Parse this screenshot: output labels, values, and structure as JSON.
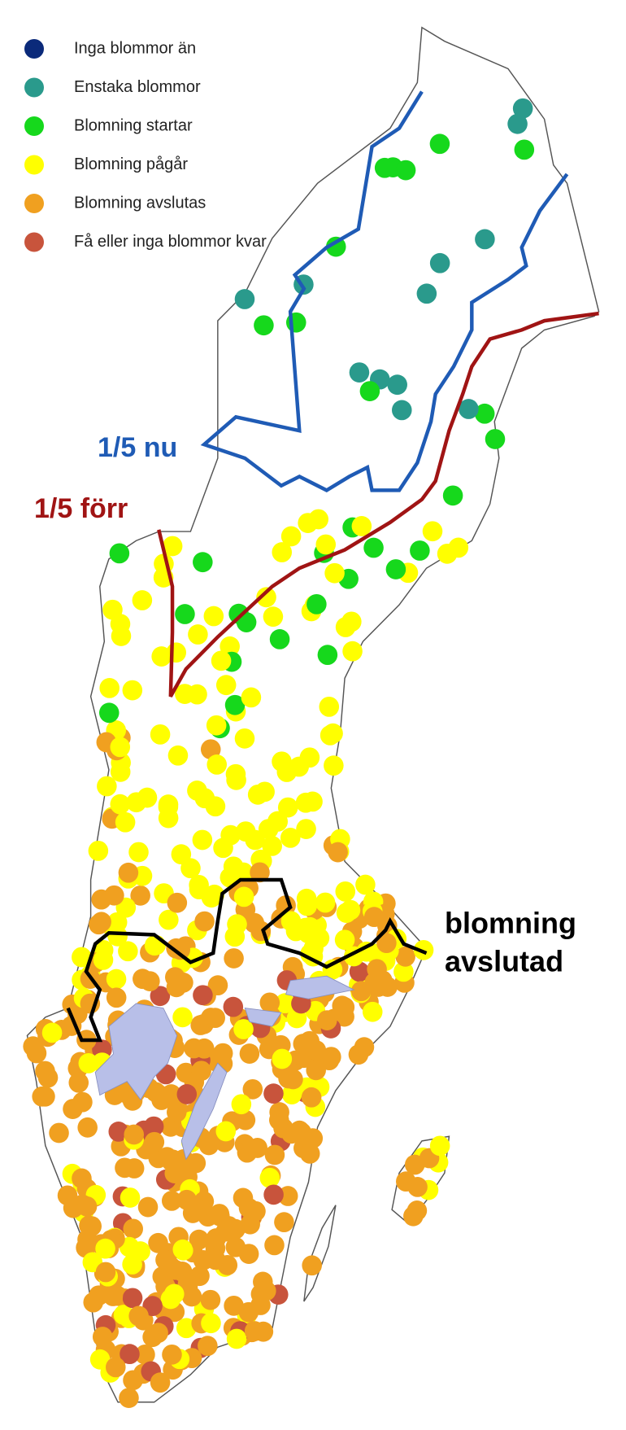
{
  "legend": {
    "items": [
      {
        "label": "Inga blommor än",
        "color": "#0b2a7a"
      },
      {
        "label": "Enstaka blommor",
        "color": "#2a9a8c"
      },
      {
        "label": "Blomning startar",
        "color": "#16d81c"
      },
      {
        "label": "Blomning pågår",
        "color": "#ffff00"
      },
      {
        "label": "Blomning avslutas",
        "color": "#f0a020"
      },
      {
        "label": "Få eller inga blommor kvar",
        "color": "#c8543c"
      }
    ]
  },
  "annotations": {
    "now": {
      "text": "1/5 nu",
      "color": "#1f5bb5"
    },
    "before": {
      "text": "1/5 förr",
      "color": "#a01414"
    },
    "ended": {
      "lines": [
        "blomning",
        "avslutad"
      ],
      "color": "#000000"
    }
  }
}
